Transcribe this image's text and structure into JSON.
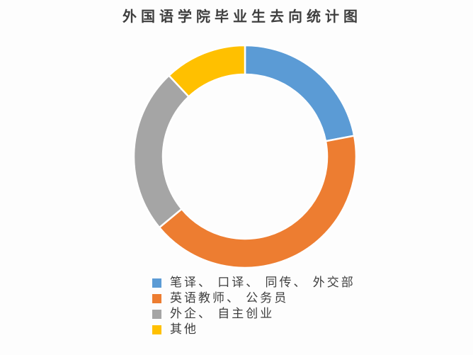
{
  "chart_data": {
    "type": "pie",
    "subtype": "donut",
    "title": "外国语学院毕业生去向统计图",
    "direction": "clockwise",
    "start_angle_deg": 0,
    "donut_hole_ratio": 0.74,
    "legend_position": "bottom-left",
    "segments": [
      {
        "label": "笔译、口译、同传、外交部",
        "value_pct": 22,
        "color": "#5B9BD5"
      },
      {
        "label": "英语教师、公务员",
        "value_pct": 42,
        "color": "#ED7D31"
      },
      {
        "label": "外企、自主创业",
        "value_pct": 24,
        "color": "#A5A5A5"
      },
      {
        "label": "其他",
        "value_pct": 12,
        "color": "#FFC000"
      }
    ]
  },
  "legend": {
    "items": [
      {
        "label": "笔译、 口译、 同传、 外交部"
      },
      {
        "label": "英语教师、 公务员"
      },
      {
        "label": "外企、 自主创业"
      },
      {
        "label": "其他"
      }
    ]
  },
  "colors": {
    "background": "#fdfdfd",
    "text": "#3e3e3e",
    "segment_gap": "#ffffff"
  }
}
